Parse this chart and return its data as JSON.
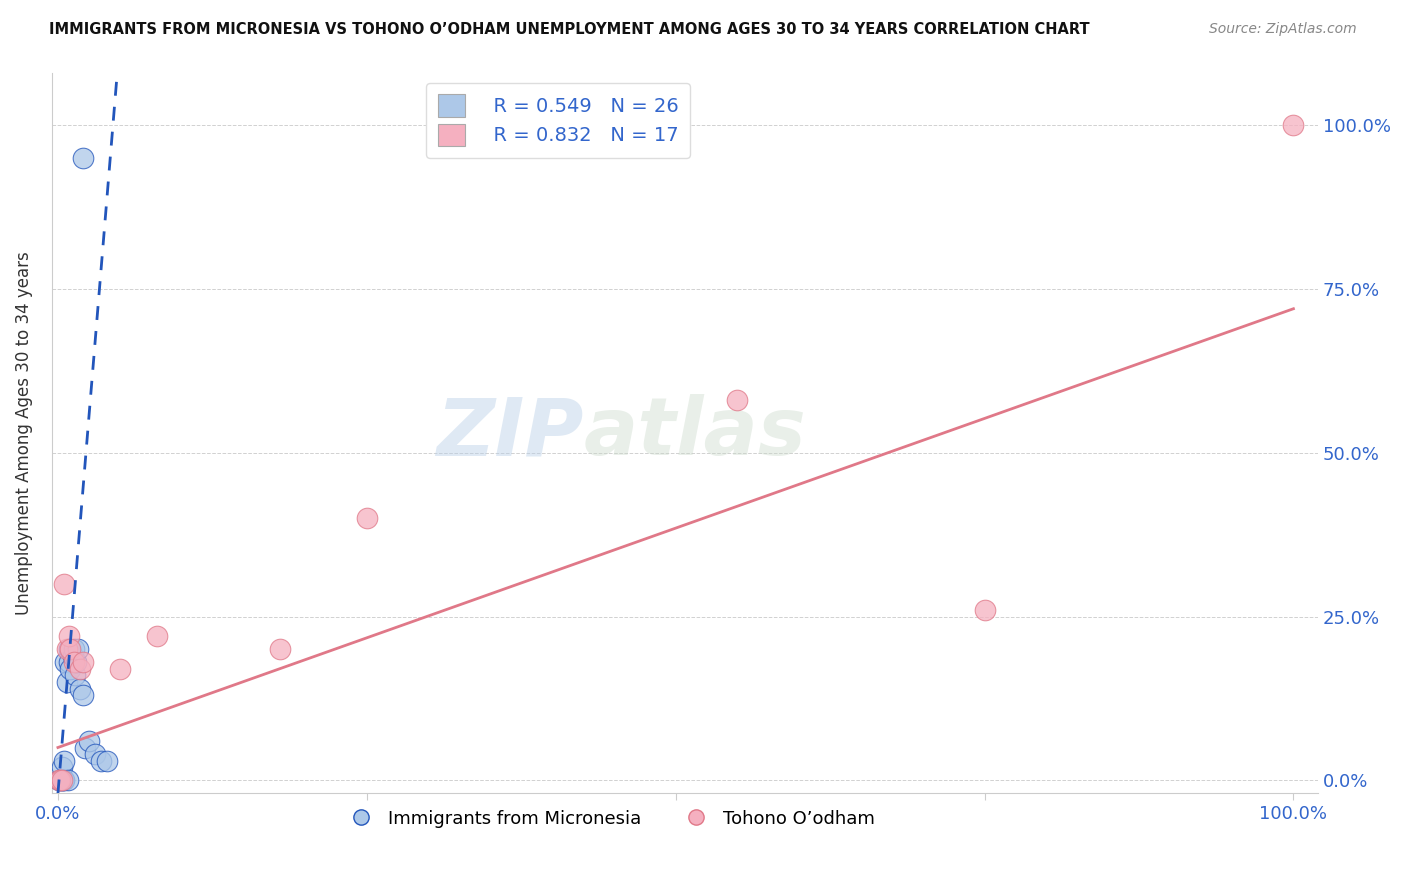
{
  "title": "IMMIGRANTS FROM MICRONESIA VS TOHONO O’ODHAM UNEMPLOYMENT AMONG AGES 30 TO 34 YEARS CORRELATION CHART",
  "source": "Source: ZipAtlas.com",
  "ylabel": "Unemployment Among Ages 30 to 34 years",
  "xlim": [
    -0.005,
    1.02
  ],
  "ylim": [
    -0.02,
    1.08
  ],
  "ytick_labels_right": [
    "0.0%",
    "25.0%",
    "50.0%",
    "75.0%",
    "100.0%"
  ],
  "ytick_positions_right": [
    0.0,
    0.25,
    0.5,
    0.75,
    1.0
  ],
  "legend_R1": "R = 0.549",
  "legend_N1": "N = 26",
  "legend_R2": "R = 0.832",
  "legend_N2": "N = 17",
  "legend_label1": "Immigrants from Micronesia",
  "legend_label2": "Tohono O’odham",
  "watermark_zip": "ZIP",
  "watermark_atlas": "atlas",
  "series1_face": "#adc8e8",
  "series2_face": "#f5b0c0",
  "line1_color": "#2255bb",
  "line2_color": "#e07888",
  "title_color": "#111111",
  "source_color": "#888888",
  "tick_label_color": "#3366cc",
  "blue_x": [
    0.001,
    0.002,
    0.003,
    0.003,
    0.004,
    0.005,
    0.005,
    0.006,
    0.007,
    0.008,
    0.009,
    0.009,
    0.01,
    0.012,
    0.013,
    0.014,
    0.015,
    0.016,
    0.018,
    0.02,
    0.022,
    0.025,
    0.03,
    0.035,
    0.04,
    0.02
  ],
  "blue_y": [
    0.0,
    0.0,
    0.0,
    0.02,
    0.0,
    0.0,
    0.03,
    0.18,
    0.15,
    0.0,
    0.18,
    0.2,
    0.17,
    0.19,
    0.2,
    0.16,
    0.18,
    0.2,
    0.14,
    0.13,
    0.05,
    0.06,
    0.04,
    0.03,
    0.03,
    0.95
  ],
  "pink_x": [
    0.001,
    0.002,
    0.003,
    0.005,
    0.007,
    0.009,
    0.01,
    0.013,
    0.018,
    0.02,
    0.05,
    0.08,
    0.18,
    0.25,
    0.55,
    0.75,
    1.0
  ],
  "pink_y": [
    0.0,
    0.0,
    0.0,
    0.3,
    0.2,
    0.22,
    0.2,
    0.18,
    0.17,
    0.18,
    0.17,
    0.22,
    0.2,
    0.4,
    0.58,
    0.26,
    1.0
  ],
  "blue_line_x": [
    0.0,
    0.048
  ],
  "blue_line_y": [
    -0.02,
    1.08
  ],
  "pink_line_x": [
    0.0,
    1.0
  ],
  "pink_line_y": [
    0.05,
    0.72
  ]
}
